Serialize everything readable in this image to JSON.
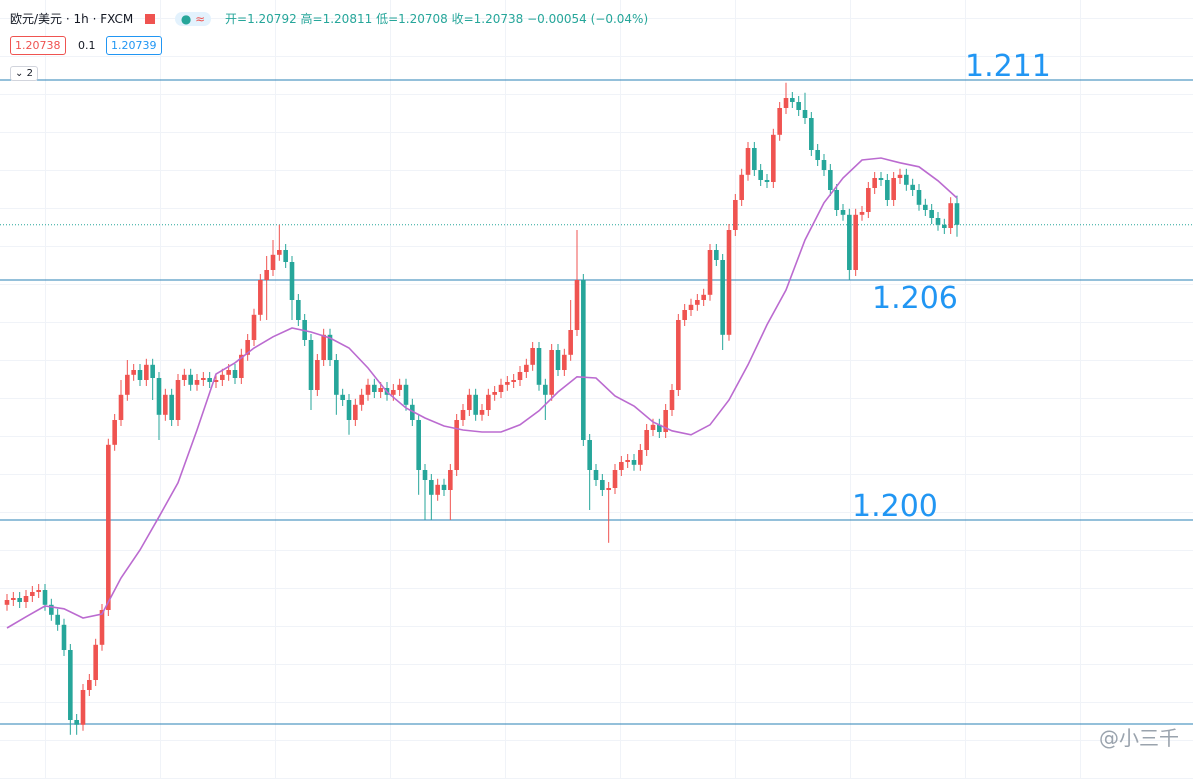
{
  "header": {
    "symbol": "欧元/美元",
    "interval": "1h",
    "source": "FXCM",
    "open": "开=1.20792",
    "high": "高=1.20811",
    "low": "低=1.20708",
    "close": "收=1.20738",
    "change": "−0.00054 (−0.04%)",
    "bid": "1.20738",
    "spread": "0.1",
    "ask": "1.20739",
    "indicators": "2"
  },
  "watermark": "@小三千",
  "chart_data": {
    "type": "candlestick",
    "up_color": "#ef5350",
    "down_color": "#26a69a",
    "ma_color": "#bb6bd0",
    "level_color": "#2a82b5",
    "ylim": [
      1.193525,
      1.213
    ],
    "open": [
      1.19788,
      1.198,
      1.19805,
      1.19795,
      1.1981,
      1.1982,
      1.19825,
      1.19788,
      1.19763,
      1.19738,
      1.19675,
      1.195,
      1.19488,
      1.19575,
      1.196,
      1.19688,
      1.19775,
      1.20188,
      1.2025,
      1.20313,
      1.20363,
      1.20375,
      1.2035,
      1.20388,
      1.20355,
      1.20263,
      1.20313,
      1.2025,
      1.2035,
      1.20363,
      1.20338,
      1.2035,
      1.20355,
      1.20345,
      1.2035,
      1.20363,
      1.20375,
      1.20355,
      1.20413,
      1.2045,
      1.20513,
      1.206,
      1.20625,
      1.20663,
      1.20675,
      1.20645,
      1.2055,
      1.205,
      1.2045,
      1.20325,
      1.204,
      1.20463,
      1.204,
      1.20313,
      1.203,
      1.2025,
      1.20288,
      1.20313,
      1.20338,
      1.2032,
      1.2033,
      1.20313,
      1.20325,
      1.20338,
      1.20288,
      1.2025,
      1.20125,
      1.201,
      1.20063,
      1.20088,
      1.20075,
      1.20125,
      1.2025,
      1.20275,
      1.20313,
      1.20263,
      1.20275,
      1.20313,
      1.2032,
      1.20338,
      1.20345,
      1.2035,
      1.2037,
      1.20388,
      1.2043,
      1.20338,
      1.20313,
      1.20425,
      1.20375,
      1.20413,
      1.20475,
      1.206,
      1.202,
      1.20125,
      1.201,
      1.20075,
      1.2008,
      1.20125,
      1.20145,
      1.2015,
      1.20138,
      1.20175,
      1.20225,
      1.20238,
      1.2022,
      1.20275,
      1.20325,
      1.205,
      1.20525,
      1.20538,
      1.2055,
      1.20563,
      1.20675,
      1.2065,
      1.20463,
      1.20725,
      1.208,
      1.20863,
      1.2093,
      1.20875,
      1.2085,
      1.20845,
      1.20963,
      1.2103,
      1.21055,
      1.21045,
      1.21025,
      1.21005,
      1.20925,
      1.209,
      1.20875,
      1.20825,
      1.20775,
      1.20763,
      1.20625,
      1.20763,
      1.2077,
      1.2083,
      1.20855,
      1.2085,
      1.208,
      1.20855,
      1.20863,
      1.20838,
      1.20825,
      1.20788,
      1.20775,
      1.20755,
      1.20738,
      1.2073,
      1.20792
    ],
    "high": [
      1.19815,
      1.1982,
      1.1982,
      1.19825,
      1.19835,
      1.1984,
      1.1984,
      1.19803,
      1.19778,
      1.19753,
      1.1969,
      1.19515,
      1.1959,
      1.19615,
      1.19703,
      1.1979,
      1.20203,
      1.20265,
      1.2035,
      1.204,
      1.2039,
      1.2039,
      1.20403,
      1.20403,
      1.2037,
      1.20328,
      1.20328,
      1.20365,
      1.20378,
      1.20378,
      1.20365,
      1.2037,
      1.2037,
      1.20365,
      1.20378,
      1.2039,
      1.2039,
      1.20428,
      1.20465,
      1.20528,
      1.20615,
      1.2066,
      1.207,
      1.20738,
      1.2069,
      1.2066,
      1.20565,
      1.20515,
      1.20465,
      1.20415,
      1.20478,
      1.20478,
      1.20415,
      1.20328,
      1.20315,
      1.20303,
      1.20328,
      1.20353,
      1.20353,
      1.20345,
      1.20345,
      1.2034,
      1.20353,
      1.20353,
      1.20303,
      1.20265,
      1.2014,
      1.20115,
      1.20103,
      1.20103,
      1.2014,
      1.20265,
      1.2029,
      1.20328,
      1.20328,
      1.2029,
      1.20328,
      1.20335,
      1.20353,
      1.2036,
      1.20365,
      1.20385,
      1.20403,
      1.20445,
      1.20445,
      1.20353,
      1.2044,
      1.2044,
      1.20428,
      1.2055,
      1.20725,
      1.20615,
      1.20215,
      1.2014,
      1.20115,
      1.20095,
      1.2014,
      1.2016,
      1.20165,
      1.20165,
      1.2019,
      1.2024,
      1.20253,
      1.20253,
      1.2029,
      1.2034,
      1.20515,
      1.2054,
      1.20553,
      1.20565,
      1.20578,
      1.2069,
      1.2069,
      1.20665,
      1.2074,
      1.20815,
      1.20878,
      1.20945,
      1.20945,
      1.2089,
      1.20865,
      1.20978,
      1.21045,
      1.21093,
      1.2107,
      1.2106,
      1.21068,
      1.2102,
      1.2094,
      1.20915,
      1.2089,
      1.2084,
      1.2079,
      1.20778,
      1.20778,
      1.20785,
      1.20845,
      1.2087,
      1.2087,
      1.20865,
      1.2087,
      1.20878,
      1.20878,
      1.20853,
      1.2084,
      1.20803,
      1.2079,
      1.2077,
      1.20753,
      1.20807,
      1.20811
    ],
    "low": [
      1.19773,
      1.19785,
      1.1978,
      1.1978,
      1.19795,
      1.19805,
      1.19773,
      1.19748,
      1.19723,
      1.1966,
      1.19463,
      1.19463,
      1.19473,
      1.1956,
      1.19585,
      1.19673,
      1.1976,
      1.20173,
      1.20235,
      1.20298,
      1.20348,
      1.20335,
      1.20335,
      1.203,
      1.202,
      1.20248,
      1.20235,
      1.20235,
      1.20335,
      1.20323,
      1.20323,
      1.20335,
      1.2033,
      1.2033,
      1.20335,
      1.20348,
      1.2034,
      1.2034,
      1.20398,
      1.20435,
      1.20498,
      1.205,
      1.2061,
      1.20648,
      1.2063,
      1.205,
      1.20485,
      1.20435,
      1.20275,
      1.2031,
      1.20385,
      1.20385,
      1.20263,
      1.20285,
      1.20213,
      1.20235,
      1.20273,
      1.20298,
      1.20305,
      1.20305,
      1.20298,
      1.20298,
      1.2031,
      1.20273,
      1.20235,
      1.20063,
      1.2,
      1.2,
      1.20048,
      1.2006,
      1.2,
      1.2011,
      1.20235,
      1.2026,
      1.20248,
      1.20248,
      1.2026,
      1.20298,
      1.20305,
      1.20323,
      1.2033,
      1.20335,
      1.20355,
      1.20373,
      1.20323,
      1.2025,
      1.20298,
      1.2036,
      1.2036,
      1.20398,
      1.2046,
      1.20185,
      1.20025,
      1.20085,
      1.2006,
      1.19943,
      1.20065,
      1.2011,
      1.2013,
      1.20123,
      1.20123,
      1.2016,
      1.2021,
      1.20205,
      1.20205,
      1.2026,
      1.2031,
      1.20485,
      1.2051,
      1.20523,
      1.20535,
      1.20548,
      1.20635,
      1.20425,
      1.20448,
      1.2071,
      1.20785,
      1.20848,
      1.2086,
      1.20835,
      1.2083,
      1.2083,
      1.20948,
      1.21015,
      1.2103,
      1.2101,
      1.2099,
      1.2091,
      1.20885,
      1.2086,
      1.2081,
      1.2076,
      1.20748,
      1.206,
      1.2061,
      1.20748,
      1.20755,
      1.20815,
      1.20835,
      1.20785,
      1.20785,
      1.2084,
      1.20823,
      1.2081,
      1.20773,
      1.2076,
      1.2074,
      1.20723,
      1.20715,
      1.20715,
      1.20708
    ],
    "close": [
      1.198,
      1.19805,
      1.19795,
      1.1981,
      1.1982,
      1.19825,
      1.19788,
      1.19763,
      1.19738,
      1.19675,
      1.195,
      1.19488,
      1.19575,
      1.196,
      1.19688,
      1.19775,
      1.20188,
      1.2025,
      1.20313,
      1.20363,
      1.20375,
      1.2035,
      1.20388,
      1.20355,
      1.20263,
      1.20313,
      1.2025,
      1.2035,
      1.20363,
      1.20338,
      1.2035,
      1.20355,
      1.20345,
      1.2035,
      1.20363,
      1.20375,
      1.20355,
      1.20413,
      1.2045,
      1.20513,
      1.206,
      1.20625,
      1.20663,
      1.20675,
      1.20645,
      1.2055,
      1.205,
      1.2045,
      1.20325,
      1.204,
      1.20463,
      1.204,
      1.20313,
      1.203,
      1.2025,
      1.20288,
      1.20313,
      1.20338,
      1.2032,
      1.2033,
      1.20313,
      1.20325,
      1.20338,
      1.20288,
      1.2025,
      1.20125,
      1.201,
      1.20063,
      1.20088,
      1.20075,
      1.20125,
      1.2025,
      1.20275,
      1.20313,
      1.20263,
      1.20275,
      1.20313,
      1.2032,
      1.20338,
      1.20345,
      1.2035,
      1.2037,
      1.20388,
      1.2043,
      1.20338,
      1.20313,
      1.20425,
      1.20375,
      1.20413,
      1.20475,
      1.206,
      1.202,
      1.20125,
      1.201,
      1.20075,
      1.2008,
      1.20125,
      1.20145,
      1.2015,
      1.20138,
      1.20175,
      1.20225,
      1.20238,
      1.2022,
      1.20275,
      1.20325,
      1.205,
      1.20525,
      1.20538,
      1.2055,
      1.20563,
      1.20675,
      1.2065,
      1.20463,
      1.20725,
      1.208,
      1.20863,
      1.2093,
      1.20875,
      1.2085,
      1.20845,
      1.20963,
      1.2103,
      1.21055,
      1.21045,
      1.21025,
      1.21005,
      1.20925,
      1.209,
      1.20875,
      1.20825,
      1.20775,
      1.20763,
      1.20625,
      1.20763,
      1.2077,
      1.2083,
      1.20855,
      1.2085,
      1.208,
      1.20855,
      1.20863,
      1.20838,
      1.20825,
      1.20788,
      1.20775,
      1.20755,
      1.20738,
      1.2073,
      1.20792,
      1.20738
    ],
    "ma": {
      "x": [
        0,
        3,
        6,
        9,
        12,
        15,
        18,
        21,
        24,
        27,
        30,
        33,
        36,
        39,
        42,
        45,
        48,
        51,
        54,
        57,
        60,
        63,
        66,
        69,
        72,
        75,
        78,
        81,
        84,
        87,
        90,
        93,
        96,
        99,
        102,
        105,
        108,
        111,
        114,
        117,
        120,
        123,
        126,
        129,
        132,
        135,
        138,
        141,
        144,
        147,
        150
      ],
      "values": [
        1.1973,
        1.19758,
        1.19785,
        1.19778,
        1.19755,
        1.19765,
        1.19855,
        1.19925,
        1.20008,
        1.20093,
        1.20225,
        1.20365,
        1.20393,
        1.2043,
        1.20458,
        1.2048,
        1.2047,
        1.20455,
        1.2043,
        1.2038,
        1.2032,
        1.2028,
        1.20255,
        1.20235,
        1.20225,
        1.2022,
        1.2022,
        1.20238,
        1.20273,
        1.2032,
        1.20358,
        1.20355,
        1.2031,
        1.20285,
        1.20245,
        1.20223,
        1.20213,
        1.20238,
        1.203,
        1.20388,
        1.20488,
        1.20575,
        1.207,
        1.20793,
        1.20855,
        1.209,
        1.20905,
        1.20893,
        1.20883,
        1.20848,
        1.20805
      ]
    },
    "levels": [
      {
        "value": 1.211,
        "label": "1.211"
      },
      {
        "value": 1.206,
        "label": "1.206"
      },
      {
        "value": 1.2,
        "label": "1.200"
      },
      1.1949
    ]
  }
}
